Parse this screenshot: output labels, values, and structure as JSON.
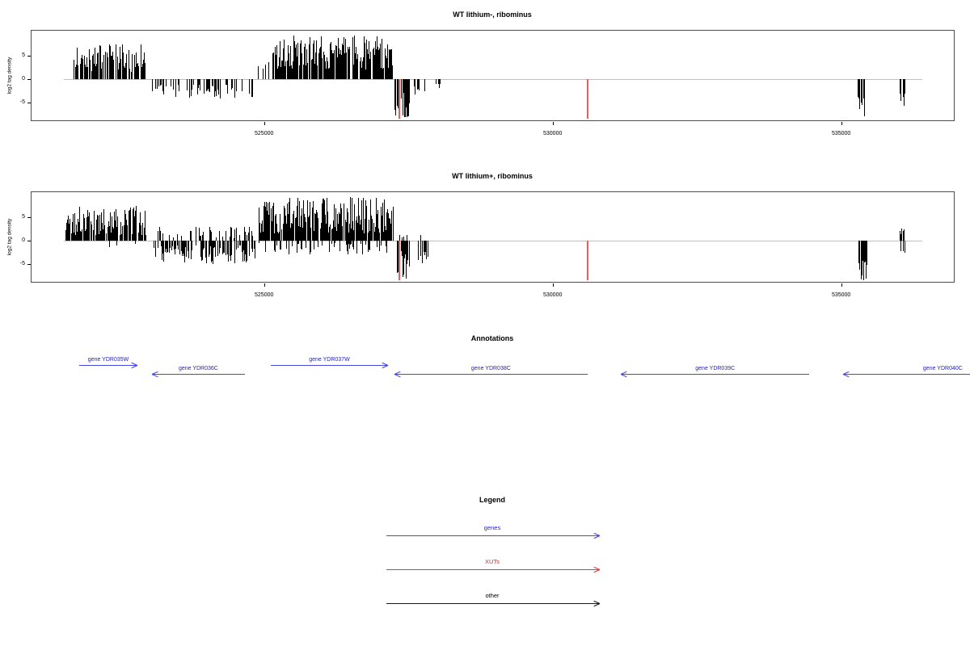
{
  "figure": {
    "background": "#ffffff"
  },
  "colors": {
    "bar": "#000000",
    "zero_line": "#bfbfbf",
    "box_border": "#4d4d4d",
    "axis_text": "#000000",
    "gene_line": "#4646e8",
    "gene_text": "#2222cc",
    "xut_line": "#ff5555",
    "xut_legend_line": "#ee3333",
    "xut_text": "#ee2222",
    "other_line": "#1a1a1a",
    "other_text": "#000000"
  },
  "chart_data": [
    {
      "type": "bar",
      "title": "WT lithium-, ribominus",
      "xlabel": "",
      "ylabel": "log2 tag density",
      "x_range": [
        520970,
        536980
      ],
      "y_range": [
        -9.3,
        10.7
      ],
      "x_ticks": [
        {
          "value": 525000,
          "label": "525000"
        },
        {
          "value": 530000,
          "label": "530000"
        },
        {
          "value": 535000,
          "label": "535000"
        }
      ],
      "y_ticks": [
        {
          "value": 5,
          "label": "5"
        },
        {
          "value": 0,
          "label": "0"
        },
        {
          "value": -5,
          "label": "-5"
        }
      ],
      "zero_line_span": [
        521530,
        536400
      ],
      "bar_step_bp": 15,
      "regions": [
        {
          "start": 521700,
          "end": 522950,
          "pos": [
            1.5,
            7.5
          ],
          "pos_p": 0.8
        },
        {
          "start": 523060,
          "end": 524800,
          "neg": [
            1.0,
            4.2
          ],
          "neg_p": 0.5
        },
        {
          "start": 524880,
          "end": 525090,
          "pos": [
            1.5,
            4.0
          ],
          "pos_p": 0.35
        },
        {
          "start": 525150,
          "end": 527230,
          "pos": [
            2.0,
            9.3
          ],
          "pos_p": 0.92
        },
        {
          "start": 527260,
          "end": 527520,
          "neg": [
            2.0,
            8.2
          ],
          "neg_p": 0.8
        },
        {
          "start": 527600,
          "end": 527830,
          "neg": [
            1.0,
            3.5
          ],
          "neg_p": 0.45
        },
        {
          "start": 527940,
          "end": 528060,
          "neg": [
            1.0,
            2.5
          ],
          "neg_p": 0.35
        },
        {
          "start": 535290,
          "end": 535430,
          "neg": [
            3.0,
            8.5
          ],
          "neg_p": 0.8
        },
        {
          "start": 536010,
          "end": 536100,
          "neg": [
            2.5,
            6.0
          ],
          "neg_p": 0.7
        }
      ],
      "xut_lines": [
        {
          "position": 527350,
          "depth": -8.5
        },
        {
          "position": 530600,
          "depth": -8.5
        }
      ]
    },
    {
      "type": "bar",
      "title": "WT lithium+, ribominus",
      "xlabel": "",
      "ylabel": "log2 tag density",
      "x_range": [
        520970,
        536980
      ],
      "y_range": [
        -9.3,
        10.7
      ],
      "x_ticks": [
        {
          "value": 525000,
          "label": "525000"
        },
        {
          "value": 530000,
          "label": "530000"
        },
        {
          "value": 535000,
          "label": "535000"
        }
      ],
      "y_ticks": [
        {
          "value": 5,
          "label": "5"
        },
        {
          "value": 0,
          "label": "0"
        },
        {
          "value": -5,
          "label": "-5"
        }
      ],
      "zero_line_span": [
        521530,
        536400
      ],
      "bar_step_bp": 15,
      "regions": [
        {
          "start": 521560,
          "end": 522950,
          "pos": [
            1.0,
            7.5
          ],
          "pos_p": 0.9,
          "neg": [
            0.5,
            1.5
          ],
          "neg_p": 0.08
        },
        {
          "start": 523060,
          "end": 524850,
          "pos": [
            0.5,
            3.0
          ],
          "pos_p": 0.3,
          "neg": [
            1.0,
            5.0
          ],
          "neg_p": 0.65
        },
        {
          "start": 524900,
          "end": 527230,
          "pos": [
            1.5,
            9.3
          ],
          "pos_p": 0.92,
          "neg": [
            0.5,
            3.0
          ],
          "neg_p": 0.35
        },
        {
          "start": 527260,
          "end": 527520,
          "pos": [
            0.5,
            1.5
          ],
          "pos_p": 0.15,
          "neg": [
            2.0,
            8.2
          ],
          "neg_p": 0.85
        },
        {
          "start": 527600,
          "end": 527850,
          "pos": [
            1.0,
            2.0
          ],
          "pos_p": 0.2,
          "neg": [
            1.5,
            5.0
          ],
          "neg_p": 0.55
        },
        {
          "start": 535290,
          "end": 535440,
          "neg": [
            3.0,
            8.5
          ],
          "neg_p": 0.85
        },
        {
          "start": 536010,
          "end": 536110,
          "pos": [
            1.0,
            2.8
          ],
          "pos_p": 0.5,
          "neg": [
            2.0,
            6.0
          ],
          "neg_p": 0.6
        }
      ],
      "xut_lines": [
        {
          "position": 527350,
          "depth": -8.5
        },
        {
          "position": 530600,
          "depth": -8.5
        }
      ]
    }
  ],
  "annotations": {
    "title": "Annotations",
    "genes": [
      {
        "label": "gene YDR035W",
        "start": 521810,
        "end": 522820,
        "strand": "+"
      },
      {
        "label": "gene YDR036C",
        "start": 523070,
        "end": 524680,
        "strand": "-"
      },
      {
        "label": "gene YDR037W",
        "start": 525130,
        "end": 527160,
        "strand": "+"
      },
      {
        "label": "gene YDR038C",
        "start": 527270,
        "end": 530620,
        "strand": "-"
      },
      {
        "label": "gene YDR039C",
        "start": 531200,
        "end": 534460,
        "strand": "-"
      },
      {
        "label": "gene YDR040C",
        "start": 535050,
        "end": 538500,
        "strand": "-"
      }
    ]
  },
  "legend": {
    "title": "Legend",
    "items": [
      {
        "label": "genes",
        "kind": "gene"
      },
      {
        "label": "XUTs",
        "kind": "xut"
      },
      {
        "label": "other",
        "kind": "other"
      }
    ]
  }
}
